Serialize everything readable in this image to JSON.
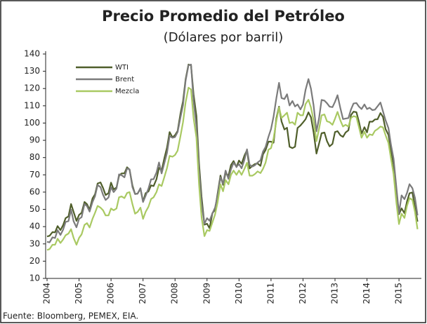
{
  "chart_data": {
    "type": "line",
    "title": "Precio Promedio del Petróleo",
    "subtitle": "(Dólares por barril)",
    "source": "Fuente: Bloomberg, PEMEX, EIA.",
    "x": [
      2004,
      2004.08,
      2004.17,
      2004.25,
      2004.33,
      2004.42,
      2004.5,
      2004.58,
      2004.67,
      2004.75,
      2004.83,
      2004.92,
      2005,
      2005.08,
      2005.17,
      2005.25,
      2005.33,
      2005.42,
      2005.5,
      2005.58,
      2005.67,
      2005.75,
      2005.83,
      2005.92,
      2006,
      2006.08,
      2006.17,
      2006.25,
      2006.33,
      2006.42,
      2006.5,
      2006.58,
      2006.67,
      2006.75,
      2006.83,
      2006.92,
      2007,
      2007.08,
      2007.17,
      2007.25,
      2007.33,
      2007.42,
      2007.5,
      2007.58,
      2007.67,
      2007.75,
      2007.83,
      2007.92,
      2008,
      2008.08,
      2008.17,
      2008.25,
      2008.33,
      2008.42,
      2008.5,
      2008.58,
      2008.67,
      2008.75,
      2008.83,
      2008.92,
      2009,
      2009.08,
      2009.17,
      2009.25,
      2009.33,
      2009.42,
      2009.5,
      2009.58,
      2009.67,
      2009.75,
      2009.83,
      2009.92,
      2010,
      2010.08,
      2010.17,
      2010.25,
      2010.33,
      2010.42,
      2010.5,
      2010.58,
      2010.67,
      2010.75,
      2010.83,
      2010.92,
      2011,
      2011.08,
      2011.17,
      2011.25,
      2011.33,
      2011.42,
      2011.5,
      2011.58,
      2011.67,
      2011.75,
      2011.83,
      2011.92,
      2012,
      2012.08,
      2012.17,
      2012.25,
      2012.33,
      2012.42,
      2012.5,
      2012.58,
      2012.67,
      2012.75,
      2012.83,
      2012.92,
      2013,
      2013.08,
      2013.17,
      2013.25,
      2013.33,
      2013.42,
      2013.5,
      2013.58,
      2013.67,
      2013.75,
      2013.83,
      2013.92,
      2014,
      2014.08,
      2014.17,
      2014.25,
      2014.33,
      2014.42,
      2014.5,
      2014.58,
      2014.67,
      2014.75,
      2014.83,
      2014.92,
      2015,
      2015.08,
      2015.17,
      2015.25,
      2015.33,
      2015.42,
      2015.5,
      2015.58
    ],
    "series": [
      {
        "name": "WTI",
        "color": "#4f5e2a",
        "values": [
          34.3,
          34.7,
          36.8,
          36.7,
          40.3,
          38.0,
          40.8,
          44.9,
          45.9,
          53.1,
          48.5,
          43.3,
          46.8,
          48.0,
          54.3,
          53.0,
          49.8,
          56.3,
          58.7,
          65.0,
          65.6,
          62.4,
          58.3,
          59.4,
          65.5,
          61.6,
          62.7,
          69.4,
          70.8,
          70.9,
          74.4,
          73.0,
          63.8,
          58.9,
          59.1,
          62.0,
          54.5,
          59.3,
          60.4,
          63.9,
          63.5,
          67.5,
          74.1,
          72.4,
          79.9,
          85.8,
          94.8,
          91.7,
          93.0,
          95.4,
          105.5,
          112.6,
          125.4,
          133.9,
          133.4,
          116.7,
          104.1,
          76.6,
          57.3,
          41.1,
          41.7,
          39.1,
          47.9,
          49.6,
          59.0,
          69.6,
          64.2,
          71.1,
          69.4,
          75.7,
          78.0,
          74.5,
          78.3,
          76.4,
          81.2,
          84.3,
          73.7,
          75.3,
          76.3,
          76.6,
          75.2,
          81.9,
          84.3,
          89.2,
          89.2,
          88.6,
          102.9,
          109.5,
          100.9,
          96.3,
          97.3,
          86.3,
          85.5,
          86.3,
          97.2,
          98.6,
          100.3,
          102.2,
          106.2,
          103.3,
          94.7,
          82.3,
          87.9,
          94.1,
          94.5,
          89.5,
          86.5,
          87.9,
          94.8,
          95.3,
          92.9,
          92.0,
          94.5,
          95.8,
          104.6,
          106.6,
          106.3,
          100.5,
          93.9,
          97.6,
          94.6,
          100.8,
          100.8,
          102.1,
          102.2,
          105.8,
          103.6,
          96.5,
          93.2,
          84.4,
          75.8,
          59.3,
          47.2,
          50.6,
          47.8,
          54.5,
          59.3,
          59.8,
          50.9,
          42.9
        ]
      },
      {
        "name": "Brent",
        "color": "#7b7b7b",
        "values": [
          31.2,
          30.9,
          33.8,
          33.4,
          37.9,
          35.2,
          38.2,
          42.7,
          43.2,
          49.8,
          43.1,
          39.6,
          44.5,
          45.5,
          53.1,
          51.9,
          48.7,
          54.3,
          57.6,
          64.1,
          62.9,
          58.5,
          55.4,
          56.9,
          62.9,
          60.0,
          62.1,
          70.3,
          69.8,
          68.6,
          73.7,
          73.2,
          62.8,
          58.9,
          59.1,
          62.3,
          54.3,
          57.8,
          62.1,
          67.4,
          67.5,
          71.3,
          77.2,
          70.8,
          77.1,
          82.8,
          92.5,
          91.5,
          91.9,
          94.8,
          103.3,
          110.4,
          124.6,
          133.5,
          133.9,
          113.0,
          98.1,
          72.8,
          53.2,
          41.6,
          44.9,
          43.4,
          47.7,
          51.0,
          57.9,
          68.6,
          64.9,
          72.5,
          67.7,
          73.2,
          77.0,
          74.7,
          76.2,
          73.8,
          78.8,
          84.8,
          75.9,
          74.8,
          75.6,
          77.1,
          78.4,
          83.5,
          86.1,
          92.0,
          96.5,
          103.7,
          114.6,
          123.3,
          114.5,
          113.9,
          116.7,
          110.2,
          112.8,
          109.6,
          110.8,
          107.9,
          110.7,
          119.3,
          125.5,
          119.8,
          110.3,
          95.2,
          102.6,
          113.4,
          113.0,
          111.5,
          109.5,
          109.2,
          112.3,
          116.1,
          108.5,
          102.3,
          102.6,
          102.9,
          107.9,
          111.3,
          111.6,
          109.5,
          108.1,
          110.8,
          108.1,
          108.9,
          107.5,
          107.8,
          109.7,
          111.9,
          106.8,
          101.6,
          97.1,
          87.4,
          79.4,
          62.3,
          47.8,
          58.1,
          55.9,
          59.5,
          64.6,
          62.3,
          56.6,
          46.5
        ]
      },
      {
        "name": "Mezcla",
        "color": "#a9c962",
        "values": [
          26.5,
          27.0,
          29.5,
          29.5,
          33.0,
          30.5,
          32.5,
          35.0,
          36.0,
          38.5,
          33.5,
          29.5,
          33.5,
          35.5,
          41.0,
          42.0,
          39.5,
          44.5,
          48.0,
          52.0,
          51.0,
          49.5,
          46.5,
          46.5,
          50.5,
          49.5,
          50.5,
          57.0,
          57.5,
          56.5,
          59.5,
          60.0,
          53.0,
          47.5,
          48.5,
          51.0,
          44.5,
          48.5,
          51.5,
          56.0,
          57.0,
          60.0,
          64.5,
          63.5,
          69.0,
          74.0,
          81.0,
          80.5,
          81.5,
          84.0,
          92.5,
          100.5,
          112.0,
          120.5,
          119.5,
          103.0,
          91.5,
          64.5,
          45.5,
          34.5,
          38.0,
          37.5,
          42.5,
          47.0,
          54.0,
          64.5,
          60.5,
          67.0,
          64.5,
          70.0,
          72.5,
          70.0,
          72.5,
          70.0,
          73.5,
          77.0,
          69.5,
          69.5,
          70.5,
          72.0,
          71.0,
          73.5,
          77.0,
          84.5,
          85.5,
          91.0,
          101.5,
          109.0,
          103.0,
          104.5,
          106.0,
          100.0,
          100.5,
          99.0,
          106.0,
          104.5,
          104.5,
          111.0,
          113.5,
          109.0,
          101.5,
          89.5,
          96.5,
          104.5,
          105.0,
          101.0,
          100.5,
          99.0,
          102.5,
          106.5,
          101.5,
          98.0,
          99.0,
          98.0,
          103.0,
          104.0,
          103.5,
          97.5,
          91.5,
          95.0,
          91.5,
          93.5,
          93.0,
          95.5,
          96.5,
          98.0,
          97.5,
          93.0,
          88.5,
          79.5,
          70.5,
          53.5,
          41.5,
          47.5,
          45.0,
          52.0,
          56.5,
          55.5,
          48.5,
          38.5
        ]
      }
    ],
    "xlim": [
      2004,
      2015.7
    ],
    "xticks": [
      2004,
      2005,
      2006,
      2007,
      2008,
      2009,
      2010,
      2011,
      2012,
      2013,
      2014,
      2015
    ],
    "ylim": [
      10,
      140
    ],
    "yticks": [
      10,
      20,
      30,
      40,
      50,
      60,
      70,
      80,
      90,
      100,
      110,
      120,
      130,
      140
    ],
    "legend": "upper left"
  }
}
